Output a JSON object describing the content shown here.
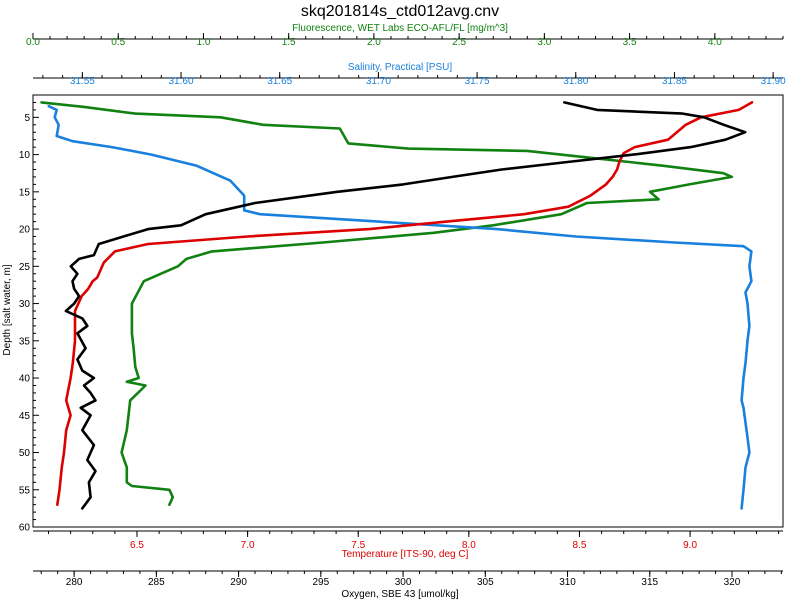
{
  "chart_data": {
    "type": "line",
    "title": "skq201814s_ctd012avg.cnv",
    "y_axis": {
      "label": "Depth [salt water, m]",
      "range": [
        60,
        2
      ],
      "ticks": [
        "5",
        "10",
        "15",
        "20",
        "25",
        "30",
        "35",
        "40",
        "45",
        "50",
        "55",
        "60"
      ]
    },
    "axes": {
      "fluorescence": {
        "label": "Fluorescence, WET Labs ECO-AFL/FL [mg/m^3]",
        "color": "#118211",
        "range": [
          0.0,
          4.4
        ],
        "ticks": [
          "0.0",
          "0.5",
          "1.0",
          "1.5",
          "2.0",
          "2.5",
          "3.0",
          "3.5",
          "4.0"
        ]
      },
      "salinity": {
        "label": "Salinity, Practical [PSU]",
        "color": "#1a80dd",
        "range": [
          31.525,
          31.905
        ],
        "ticks": [
          "31.55",
          "31.60",
          "31.65",
          "31.70",
          "31.75",
          "31.80",
          "31.85",
          "31.90"
        ]
      },
      "temperature": {
        "label": "Temperature [ITS-90, deg C]",
        "color": "#dd0000",
        "range": [
          6.03,
          9.42
        ],
        "ticks": [
          "6.5",
          "7.0",
          "7.5",
          "8.0",
          "8.5",
          "9.0"
        ]
      },
      "oxygen": {
        "label": "Oxygen, SBE 43 [umol/kg]",
        "color": "#000000",
        "range": [
          277.5,
          323.1
        ],
        "ticks": [
          "280",
          "285",
          "290",
          "295",
          "300",
          "305",
          "310",
          "315",
          "320"
        ]
      }
    },
    "series": [
      {
        "name": "Fluorescence",
        "axis": "fluorescence",
        "color": "#118211",
        "x": [
          0.05,
          0.3,
          0.6,
          1.1,
          1.35,
          1.8,
          1.85,
          2.2,
          2.9,
          3.3,
          3.7,
          4.05,
          4.1,
          3.85,
          3.62,
          3.67,
          3.25,
          3.1,
          2.7,
          2.35,
          1.7,
          1.05,
          0.9,
          0.85,
          0.65,
          0.58,
          0.58,
          0.59,
          0.6,
          0.62,
          0.55,
          0.66,
          0.57,
          0.55,
          0.52,
          0.55,
          0.55,
          0.58,
          0.8,
          0.82,
          0.8
        ],
        "y": [
          3,
          3.6,
          4.5,
          5.0,
          6.0,
          6.5,
          8.5,
          9.2,
          9.5,
          10.5,
          11.5,
          12.5,
          13.0,
          14.0,
          15.0,
          16.0,
          16.5,
          18.0,
          19.5,
          20.5,
          21.8,
          23.0,
          24.0,
          25.0,
          27.0,
          30.0,
          34.0,
          36.0,
          38.5,
          40.0,
          40.5,
          41.0,
          43.0,
          47.0,
          50.0,
          52.0,
          54.0,
          54.5,
          55.0,
          56.0,
          57.0
        ]
      },
      {
        "name": "Salinity",
        "axis": "salinity",
        "color": "#1a80dd",
        "x": [
          31.533,
          31.537,
          31.536,
          31.538,
          31.537,
          31.545,
          31.565,
          31.585,
          31.608,
          31.625,
          31.632,
          31.632,
          31.64,
          31.7,
          31.76,
          31.8,
          31.85,
          31.885,
          31.889,
          31.888,
          31.889,
          31.886,
          31.887,
          31.888,
          31.887,
          31.886,
          31.885,
          31.884,
          31.885,
          31.887,
          31.888,
          31.886,
          31.885,
          31.884
        ],
        "y": [
          3.5,
          4.0,
          5.0,
          6.0,
          7.5,
          8.2,
          9.0,
          10.0,
          11.5,
          13.5,
          15.5,
          17.5,
          18.0,
          19.0,
          20.0,
          21.0,
          21.8,
          22.3,
          23.0,
          25.0,
          27.0,
          28.5,
          30.0,
          33.0,
          35.0,
          38.0,
          40.0,
          43.0,
          44.0,
          48.0,
          50.0,
          52.0,
          55.0,
          57.5
        ],
        "note": "x values in PSU"
      },
      {
        "name": "Temperature",
        "axis": "temperature",
        "color": "#dd0000",
        "x": [
          9.28,
          9.22,
          9.05,
          8.98,
          8.9,
          8.75,
          8.7,
          8.68,
          8.67,
          8.65,
          8.62,
          8.55,
          8.45,
          8.25,
          7.9,
          7.55,
          7.0,
          6.55,
          6.4,
          6.35,
          6.32,
          6.3,
          6.28,
          6.25,
          6.22,
          6.22,
          6.21,
          6.2,
          6.18,
          6.2,
          6.19,
          6.18,
          6.17,
          6.16,
          6.15,
          6.14
        ],
        "y": [
          3,
          4.0,
          5.0,
          6.0,
          8.0,
          9.0,
          9.8,
          11.0,
          12.0,
          13.0,
          14.0,
          15.5,
          17.0,
          18.0,
          19.0,
          20.0,
          21.0,
          22.0,
          23.0,
          24.5,
          26.5,
          27.0,
          28.0,
          29.0,
          31.0,
          35.0,
          38.0,
          40.0,
          43.0,
          45.0,
          46.0,
          47.0,
          50.0,
          52.0,
          55.0,
          57.0
        ],
        "note": "x values in deg C"
      },
      {
        "name": "Oxygen",
        "axis": "oxygen",
        "color": "#000000",
        "x": [
          309.8,
          311.8,
          317.0,
          318.3,
          319.5,
          320.8,
          319.6,
          317.5,
          314.0,
          310.0,
          306.0,
          303.0,
          300.0,
          296.0,
          291.0,
          288.0,
          286.5,
          284.5,
          283.0,
          281.5,
          281.2,
          280.3,
          279.8,
          280.2,
          279.9,
          280.0,
          280.3,
          280.0,
          279.5,
          280.5,
          280.8,
          280.2,
          280.7,
          280.2,
          280.5,
          281.2,
          280.6,
          281.0,
          281.3,
          280.4,
          281.0,
          280.5,
          281.2,
          280.8,
          281.3,
          280.9,
          281.0,
          280.5
        ],
        "y": [
          3,
          4.0,
          4.5,
          5.0,
          6.0,
          7.0,
          8.0,
          9.0,
          10.0,
          11.0,
          12.0,
          13.0,
          14.0,
          15.0,
          16.5,
          18.0,
          19.5,
          20.0,
          21.0,
          22.0,
          23.5,
          24.0,
          25.0,
          26.0,
          27.0,
          28.0,
          29.0,
          30.0,
          31.0,
          32.0,
          33.0,
          34.0,
          36.0,
          37.5,
          39.0,
          40.0,
          41.0,
          42.0,
          43.0,
          44.0,
          45.0,
          47.0,
          49.0,
          51.0,
          52.5,
          54.0,
          56.0,
          57.5
        ],
        "note": "x values in umol/kg"
      }
    ]
  }
}
